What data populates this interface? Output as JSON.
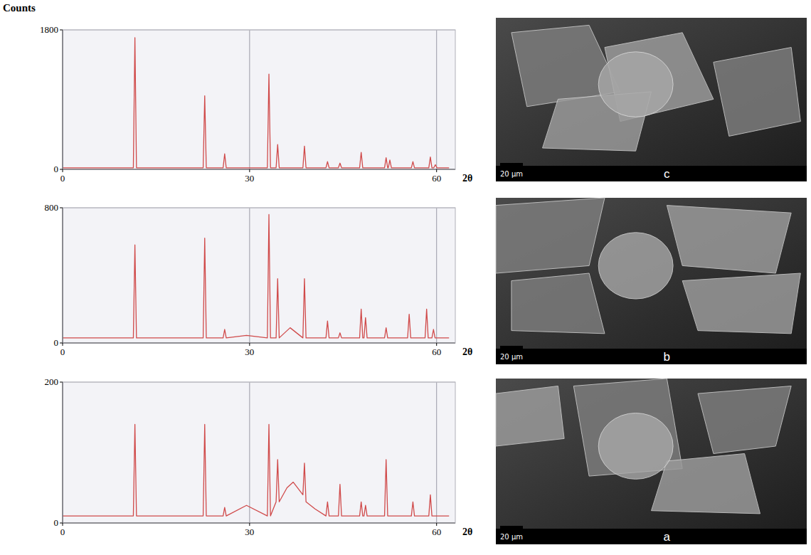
{
  "chart_data": [
    {
      "type": "line",
      "y_label": "Counts",
      "x_label": "2θ",
      "color": "#d04a4a",
      "grid": true,
      "xlim": [
        0,
        63
      ],
      "xticks": [
        0,
        30,
        60
      ],
      "ylim": [
        0,
        1800
      ],
      "yticks": [
        0,
        1800
      ],
      "x": [
        0,
        11.35,
        11.6,
        11.85,
        22.55,
        22.8,
        23.05,
        25.75,
        26.0,
        26.25,
        32.85,
        33.1,
        33.35,
        34.25,
        34.5,
        34.75,
        38.55,
        38.8,
        39.05,
        42.25,
        42.5,
        42.75,
        44.25,
        44.5,
        44.75,
        47.65,
        47.9,
        48.15,
        51.65,
        51.9,
        52.15,
        52.25,
        52.5,
        52.75,
        55.95,
        56.2,
        56.45,
        58.75,
        59.0,
        59.25,
        59.55,
        59.8,
        60.05,
        62
      ],
      "values": [
        20,
        20,
        1700,
        20,
        20,
        950,
        20,
        20,
        200,
        20,
        20,
        1230,
        20,
        20,
        320,
        20,
        20,
        300,
        20,
        20,
        100,
        20,
        20,
        80,
        20,
        20,
        220,
        20,
        20,
        150,
        20,
        20,
        120,
        20,
        20,
        100,
        20,
        20,
        160,
        20,
        20,
        60,
        20,
        20
      ]
    },
    {
      "type": "line",
      "x_label": "2θ",
      "color": "#d04a4a",
      "grid": true,
      "xlim": [
        0,
        63
      ],
      "xticks": [
        0,
        30,
        60
      ],
      "ylim": [
        0,
        800
      ],
      "yticks": [
        0,
        800
      ],
      "x": [
        0,
        11.35,
        11.6,
        11.85,
        22.55,
        22.8,
        23.05,
        25.75,
        26.0,
        26.25,
        29.5,
        32.85,
        33.1,
        33.35,
        34.25,
        34.5,
        34.75,
        36.5,
        38.55,
        38.8,
        39.05,
        42.25,
        42.5,
        42.75,
        44.25,
        44.5,
        44.75,
        47.65,
        47.9,
        48.15,
        48.35,
        48.6,
        48.85,
        51.65,
        51.9,
        52.15,
        55.35,
        55.6,
        55.85,
        58.15,
        58.4,
        58.65,
        59.25,
        59.5,
        59.75,
        62
      ],
      "values": [
        30,
        30,
        580,
        30,
        30,
        620,
        30,
        30,
        80,
        30,
        45,
        30,
        760,
        30,
        30,
        380,
        30,
        90,
        30,
        380,
        30,
        30,
        130,
        30,
        30,
        60,
        30,
        30,
        200,
        30,
        30,
        150,
        30,
        30,
        90,
        30,
        30,
        170,
        30,
        30,
        200,
        30,
        30,
        80,
        30,
        30
      ]
    },
    {
      "type": "line",
      "x_label": "2θ",
      "color": "#d04a4a",
      "grid": true,
      "xlim": [
        0,
        63
      ],
      "xticks": [
        0,
        30,
        60
      ],
      "ylim": [
        0,
        200
      ],
      "yticks": [
        0,
        200
      ],
      "x": [
        0,
        11.35,
        11.6,
        11.85,
        22.55,
        22.8,
        23.05,
        25.75,
        26.0,
        26.25,
        29.5,
        32.85,
        33.1,
        33.35,
        34.25,
        34.5,
        34.75,
        36.0,
        37.0,
        38.55,
        38.8,
        39.05,
        40.5,
        42.25,
        42.5,
        42.75,
        44.25,
        44.5,
        44.75,
        47.65,
        47.9,
        48.15,
        48.35,
        48.6,
        48.85,
        51.65,
        51.9,
        52.15,
        55.95,
        56.2,
        56.45,
        58.75,
        59.0,
        59.25,
        62
      ],
      "values": [
        10,
        10,
        140,
        10,
        10,
        140,
        10,
        10,
        22,
        10,
        25,
        10,
        140,
        10,
        30,
        90,
        30,
        50,
        58,
        40,
        85,
        30,
        20,
        10,
        30,
        10,
        10,
        55,
        10,
        10,
        30,
        10,
        10,
        25,
        10,
        10,
        90,
        10,
        10,
        30,
        10,
        10,
        40,
        10,
        10
      ]
    }
  ],
  "images": [
    {
      "label": "c",
      "scale_bar": "20 μm"
    },
    {
      "label": "b",
      "scale_bar": "20 μm"
    },
    {
      "label": "a",
      "scale_bar": "20 μm"
    }
  ]
}
